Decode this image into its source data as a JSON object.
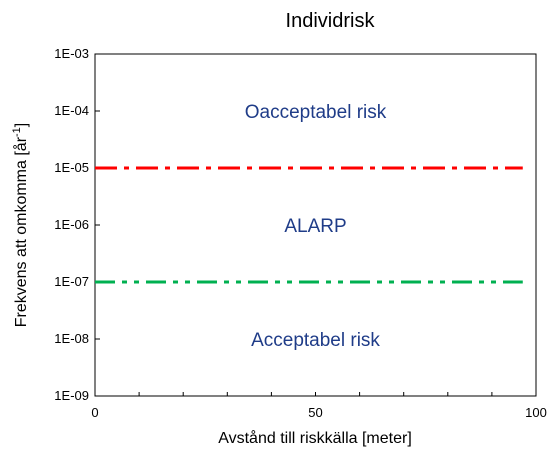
{
  "chart_data": {
    "type": "line",
    "title": "Individrisk",
    "xlabel": "Avstånd till riskkälla [meter]",
    "ylabel": {
      "prefix": "Frekvens att omkomma [år",
      "superscript": "-1",
      "suffix": "]"
    },
    "xlim": [
      0,
      100
    ],
    "ylim": [
      1e-09,
      0.001
    ],
    "y_scale": "log",
    "x_ticks": [
      0,
      50,
      100
    ],
    "x_minor_step": 10,
    "y_ticks": [
      {
        "value": 0.001,
        "label": "1E-03"
      },
      {
        "value": 0.0001,
        "label": "1E-04"
      },
      {
        "value": 1e-05,
        "label": "1E-05"
      },
      {
        "value": 1e-06,
        "label": "1E-06"
      },
      {
        "value": 1e-07,
        "label": "1E-07"
      },
      {
        "value": 1e-08,
        "label": "1E-08"
      },
      {
        "value": 1e-09,
        "label": "1E-09"
      }
    ],
    "grid": false,
    "legend": "none",
    "series": [
      {
        "x": [
          0,
          97
        ],
        "y": [
          1e-05,
          1e-05
        ],
        "color": "#ff0000",
        "dash": "dash-dot"
      },
      {
        "x": [
          0,
          97
        ],
        "y": [
          1e-07,
          1e-07
        ],
        "color": "#00b050",
        "dash": "dash-dot-dot"
      }
    ],
    "annotations": [
      {
        "text": "Oacceptabel risk",
        "x": 50,
        "y": 0.0001,
        "color": "#1f3c88"
      },
      {
        "text": "ALARP",
        "x": 50,
        "y": 1e-06,
        "color": "#1f3c88"
      },
      {
        "text": "Acceptabel risk",
        "x": 50,
        "y": 1e-08,
        "color": "#1f3c88"
      }
    ]
  }
}
